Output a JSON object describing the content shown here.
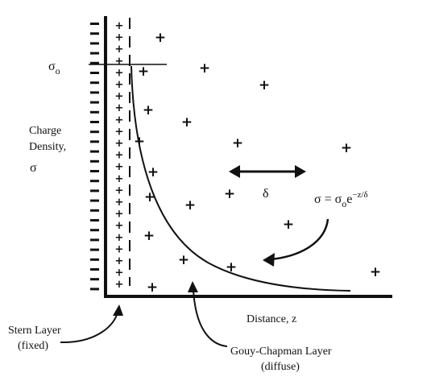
{
  "labels": {
    "sigma_o": "σ",
    "sigma_o_sub": "o",
    "charge_density_line1": "Charge",
    "charge_density_line2": "Density,",
    "charge_density_symbol": "σ",
    "delta": "δ",
    "equation_main": "σ = σ",
    "equation_sub": "o",
    "equation_exp_prefix": "e",
    "equation_exp": "−z/δ",
    "distance": "Distance, z",
    "stern_line1": "Stern Layer",
    "stern_line2": "(fixed)",
    "gouy_line1": "Gouy-Chapman Layer",
    "gouy_line2": "(diffuse)"
  },
  "colors": {
    "ink": "#111111",
    "background": "#ffffff"
  }
}
